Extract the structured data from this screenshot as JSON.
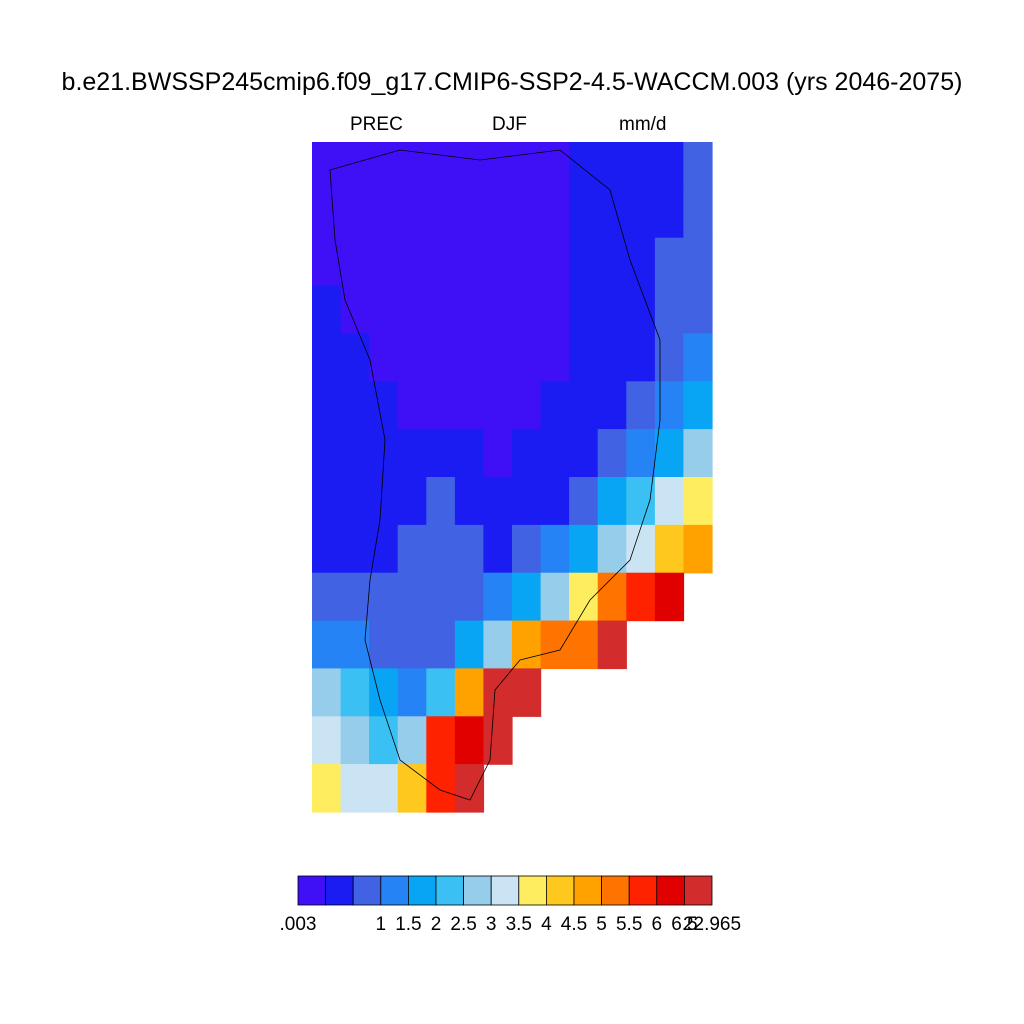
{
  "chart_data": {
    "type": "heatmap",
    "title": "b.e21.BWSSP245cmip6.f09_g17.CMIP6-SSP2-4.5-WACCM.003 (yrs 2046-2075)",
    "left_string": "PREC",
    "center_string": "DJF",
    "right_string": "mm/d",
    "levels": [
      ".003",
      "",
      "1",
      "1.5",
      "2",
      "2.5",
      "3",
      "3.5",
      "4",
      "4.5",
      "5",
      "5.5",
      "6",
      "6.5",
      "22.965"
    ],
    "colorbar_colors": [
      "#3f0ff5",
      "#1a1cf2",
      "#4163e3",
      "#2583f5",
      "#08a5f5",
      "#3ac0f2",
      "#96cdeb",
      "#cbe4f4",
      "#feed5e",
      "#ffc81e",
      "#ffa200",
      "#ff7300",
      "#ff2200",
      "#e00000",
      "#d32c2c"
    ],
    "field": {
      "description_rows": "coarse grid of precipitation classes over Greenland (DJF)",
      "cells": [
        [
          0,
          0,
          0,
          0,
          0,
          0,
          0,
          0,
          0,
          1,
          1,
          1,
          1,
          2
        ],
        [
          0,
          0,
          0,
          0,
          0,
          0,
          0,
          0,
          0,
          1,
          1,
          1,
          1,
          2
        ],
        [
          0,
          0,
          0,
          0,
          0,
          0,
          0,
          0,
          0,
          1,
          1,
          1,
          2,
          2
        ],
        [
          1,
          0,
          0,
          0,
          0,
          0,
          0,
          0,
          0,
          1,
          1,
          1,
          2,
          2
        ],
        [
          1,
          1,
          0,
          0,
          0,
          0,
          0,
          0,
          0,
          1,
          1,
          1,
          2,
          3
        ],
        [
          1,
          1,
          1,
          0,
          0,
          0,
          0,
          0,
          1,
          1,
          1,
          2,
          3,
          4
        ],
        [
          1,
          1,
          1,
          1,
          1,
          1,
          0,
          1,
          1,
          1,
          2,
          3,
          4,
          6
        ],
        [
          1,
          1,
          1,
          1,
          2,
          1,
          1,
          1,
          1,
          2,
          4,
          5,
          7,
          8
        ],
        [
          1,
          1,
          1,
          2,
          2,
          2,
          1,
          2,
          3,
          4,
          6,
          7,
          9,
          10
        ],
        [
          2,
          2,
          2,
          2,
          2,
          2,
          3,
          4,
          6,
          8,
          11,
          12,
          13,
          -1
        ],
        [
          3,
          3,
          2,
          2,
          2,
          4,
          6,
          10,
          11,
          11,
          14,
          -1,
          -1,
          -1
        ],
        [
          6,
          5,
          4,
          3,
          5,
          10,
          14,
          14,
          -1,
          -1,
          -1,
          -1,
          -1,
          -1
        ],
        [
          7,
          6,
          5,
          6,
          12,
          13,
          14,
          -1,
          -1,
          -1,
          -1,
          -1,
          -1,
          -1
        ],
        [
          8,
          7,
          7,
          9,
          12,
          14,
          -1,
          -1,
          -1,
          -1,
          -1,
          -1,
          -1,
          -1
        ]
      ]
    }
  }
}
